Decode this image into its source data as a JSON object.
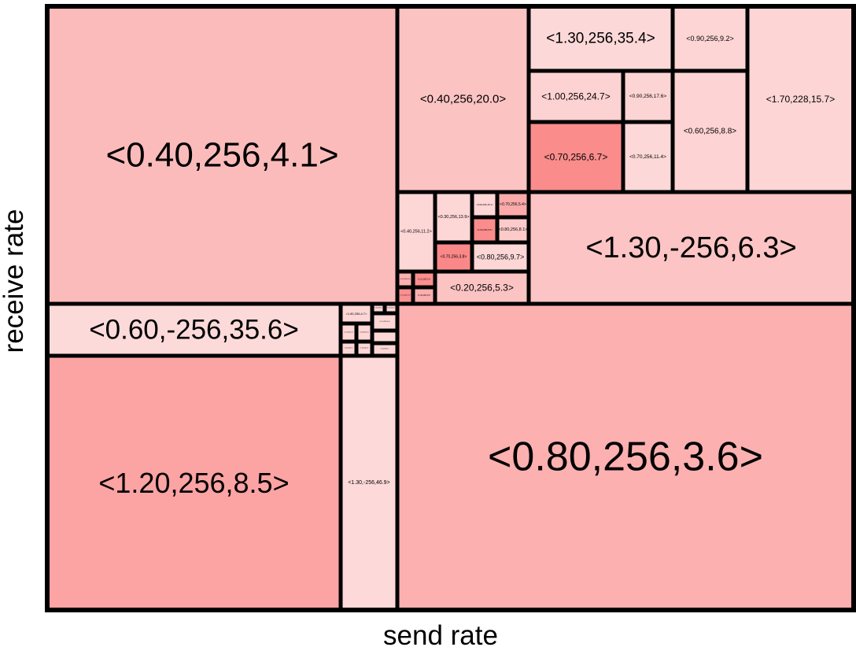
{
  "chart_data": {
    "type": "treemap",
    "xlabel": "send rate",
    "ylabel": "receive rate",
    "cells": [
      {
        "label": "<0.40,256,4.1>",
        "color": "#fcbbbb"
      },
      {
        "label": "<0.40,256,20.0>",
        "color": "#fcc3c3"
      },
      {
        "label": "<1.30,256,35.4>",
        "color": "#fdd8d8"
      },
      {
        "label": "<0.90,256,9.2>",
        "color": "#fdd5d5"
      },
      {
        "label": "<1.70,228,15.7>",
        "color": "#fdd5d5"
      },
      {
        "label": "<1.00,256,24.7>",
        "color": "#fdd2d2"
      },
      {
        "label": "<0.90,256,17.6>",
        "color": "#fdd4d4"
      },
      {
        "label": "<0.60,256,8.8>",
        "color": "#fdd3d3"
      },
      {
        "label": "<0.70,256,6.7>",
        "color": "#fb8c8c"
      },
      {
        "label": "<0.70,256,11.4>",
        "color": "#fdd8d8"
      },
      {
        "label": "<0.40,256,11.2>",
        "color": "#fdd6d6"
      },
      {
        "label": "<0.30,256,13.9>",
        "color": "#fdd6d6"
      },
      {
        "label": "<0.60,256,15.1>",
        "color": "#fdd6d6"
      },
      {
        "label": "<0.70,256,5.4>",
        "color": "#fbaaaa"
      },
      {
        "label": "<0.60,256,5.6>",
        "color": "#fb8c8c"
      },
      {
        "label": "<0.80,256,8.1>",
        "color": "#fdcaca"
      },
      {
        "label": "<0.70,256,3.8>",
        "color": "#fb8888"
      },
      {
        "label": "<0.80,256,9.7>",
        "color": "#fdd6d6"
      },
      {
        "label": "<0.50,256,6.9>",
        "color": "#fcb0b0"
      },
      {
        "label": "<1.10,256,2.4>",
        "color": "#fb8e8e"
      },
      {
        "label": "<1.30,256,2.8>",
        "color": "#fb9090"
      },
      {
        "label": "<1.30,256,3.5>",
        "color": "#fcaeae"
      },
      {
        "label": "<0.20,256,5.3>",
        "color": "#fcc3c3"
      },
      {
        "label": "<1.30,-256,6.3>",
        "color": "#fcc4c4"
      },
      {
        "label": "<0.60,-256,35.6>",
        "color": "#fddada"
      },
      {
        "label": "<1.80,256,4.7>",
        "color": "#fdd6d6"
      },
      {
        "label": "<0.90,256,2.1>",
        "color": "#fdd6d6"
      },
      {
        "label": "<1.00,256,2.2>",
        "color": "#fdd6d6"
      },
      {
        "label": "<1.10,256,3.0>",
        "color": "#fdd6d6"
      },
      {
        "label": "<1.50,256,2.5>",
        "color": "#fdd6d6"
      },
      {
        "label": "<1.60,256,3.1>",
        "color": "#fdd6d6"
      },
      {
        "label": "<1.40,256,2.9>",
        "color": "#fdd6d6"
      },
      {
        "label": "<1.50,256,3.3>",
        "color": "#fdd6d6"
      },
      {
        "label": "<1.60,256,2.4>",
        "color": "#fdd6d6"
      },
      {
        "label": "<1.60,256,3.2>",
        "color": "#fdd6d6"
      },
      {
        "label": "<1.20,256,8.5>",
        "color": "#fca3a3"
      },
      {
        "label": "<1.30,-256,46.9>",
        "color": "#fdd9d9"
      },
      {
        "label": "<0.80,256,3.6>",
        "color": "#fcb0b0"
      }
    ]
  }
}
